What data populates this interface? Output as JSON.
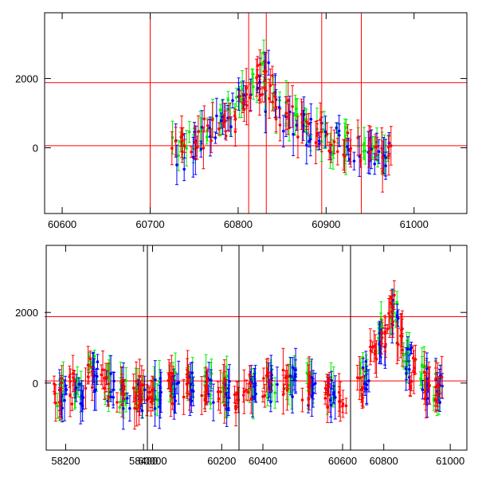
{
  "colors": {
    "green": "#00ee00",
    "blue": "#0000ff",
    "red": "#ff0000"
  },
  "chart_data": [
    {
      "type": "scatter",
      "xlim": [
        60580,
        61060
      ],
      "ylim": [
        -1900,
        3900
      ],
      "x_ticks": [
        "60600",
        "60700",
        "60800",
        "60900",
        "61000"
      ],
      "y_ticks": [
        "0",
        "2000"
      ],
      "hlines": [
        1880,
        60
      ],
      "vlines": [
        60700,
        60812,
        60832,
        60895,
        60940
      ],
      "series": [
        {
          "color": "green",
          "x": [
            60730,
            60745,
            60760,
            60775,
            60790,
            60805,
            60815,
            60825,
            60835,
            60850,
            60865,
            60880,
            60895,
            60910,
            60925,
            60940,
            60955,
            60965
          ],
          "y": [
            -50,
            250,
            600,
            900,
            1200,
            1650,
            1950,
            2300,
            1500,
            1050,
            800,
            650,
            500,
            250,
            150,
            100,
            50,
            -50
          ]
        },
        {
          "color": "blue",
          "x": [
            60732,
            60748,
            60762,
            60778,
            60792,
            60806,
            60818,
            60828,
            60838,
            60852,
            60868,
            60884,
            60898,
            60912,
            60928,
            60944,
            60958,
            60968
          ],
          "y": [
            -200,
            100,
            300,
            600,
            1000,
            1400,
            1800,
            2300,
            1400,
            900,
            700,
            500,
            400,
            200,
            50,
            0,
            -100,
            -200
          ]
        },
        {
          "color": "red",
          "x": [
            60730,
            60742,
            60755,
            60768,
            60780,
            60792,
            60803,
            60812,
            60820,
            60826,
            60832,
            60840,
            60850,
            60862,
            60875,
            60888,
            60900,
            60915,
            60930,
            60945,
            60960,
            60968
          ],
          "y": [
            -100,
            80,
            250,
            420,
            650,
            900,
            1150,
            1450,
            1750,
            2050,
            1850,
            1400,
            1000,
            750,
            550,
            450,
            300,
            150,
            50,
            0,
            -100,
            -250
          ]
        }
      ]
    },
    {
      "type": "scatter",
      "xlim": [
        58150,
        61050
      ],
      "ylim": [
        -1900,
        3900
      ],
      "x_ticks": [
        "58200",
        "58400",
        "60000",
        "60200",
        "60400",
        "60600",
        "60800",
        "61000"
      ],
      "y_ticks": [
        "0",
        "2000"
      ],
      "hlines": [
        1880,
        60
      ],
      "vlines": [],
      "series": [
        {
          "color": "green",
          "x": [
            58190,
            58230,
            58270,
            58310,
            58350,
            58390,
            60010,
            60060,
            60110,
            60160,
            60210,
            60370,
            60420,
            60470,
            60520,
            60570,
            60740,
            60790,
            60830,
            60870,
            60920,
            60960
          ],
          "y": [
            -200,
            -100,
            400,
            0,
            -250,
            -300,
            -200,
            -100,
            0,
            -150,
            -200,
            -150,
            0,
            100,
            -100,
            -200,
            400,
            1400,
            1900,
            700,
            100,
            -100
          ]
        },
        {
          "color": "blue",
          "x": [
            58195,
            58235,
            58275,
            58315,
            58355,
            58395,
            60015,
            60065,
            60115,
            60165,
            60215,
            60375,
            60425,
            60475,
            60525,
            60575,
            60745,
            60795,
            60835,
            60875,
            60925,
            60965
          ],
          "y": [
            -300,
            -200,
            200,
            -100,
            -300,
            -350,
            -300,
            -200,
            -150,
            -250,
            -300,
            -250,
            -100,
            0,
            -200,
            -300,
            200,
            1200,
            2000,
            600,
            0,
            -200
          ]
        },
        {
          "color": "red",
          "x": [
            58180,
            58220,
            58260,
            58300,
            58340,
            58380,
            58400,
            60000,
            60050,
            60100,
            60150,
            60200,
            60240,
            60360,
            60410,
            60460,
            60510,
            60560,
            60600,
            60730,
            60770,
            60800,
            60825,
            60850,
            60890,
            60930,
            60965
          ],
          "y": [
            -250,
            -150,
            300,
            -50,
            -200,
            -300,
            -250,
            -250,
            -150,
            -50,
            -200,
            -250,
            -300,
            -200,
            -100,
            50,
            -150,
            -250,
            -300,
            -100,
            600,
            1500,
            2100,
            1100,
            300,
            0,
            -200
          ]
        }
      ]
    }
  ]
}
